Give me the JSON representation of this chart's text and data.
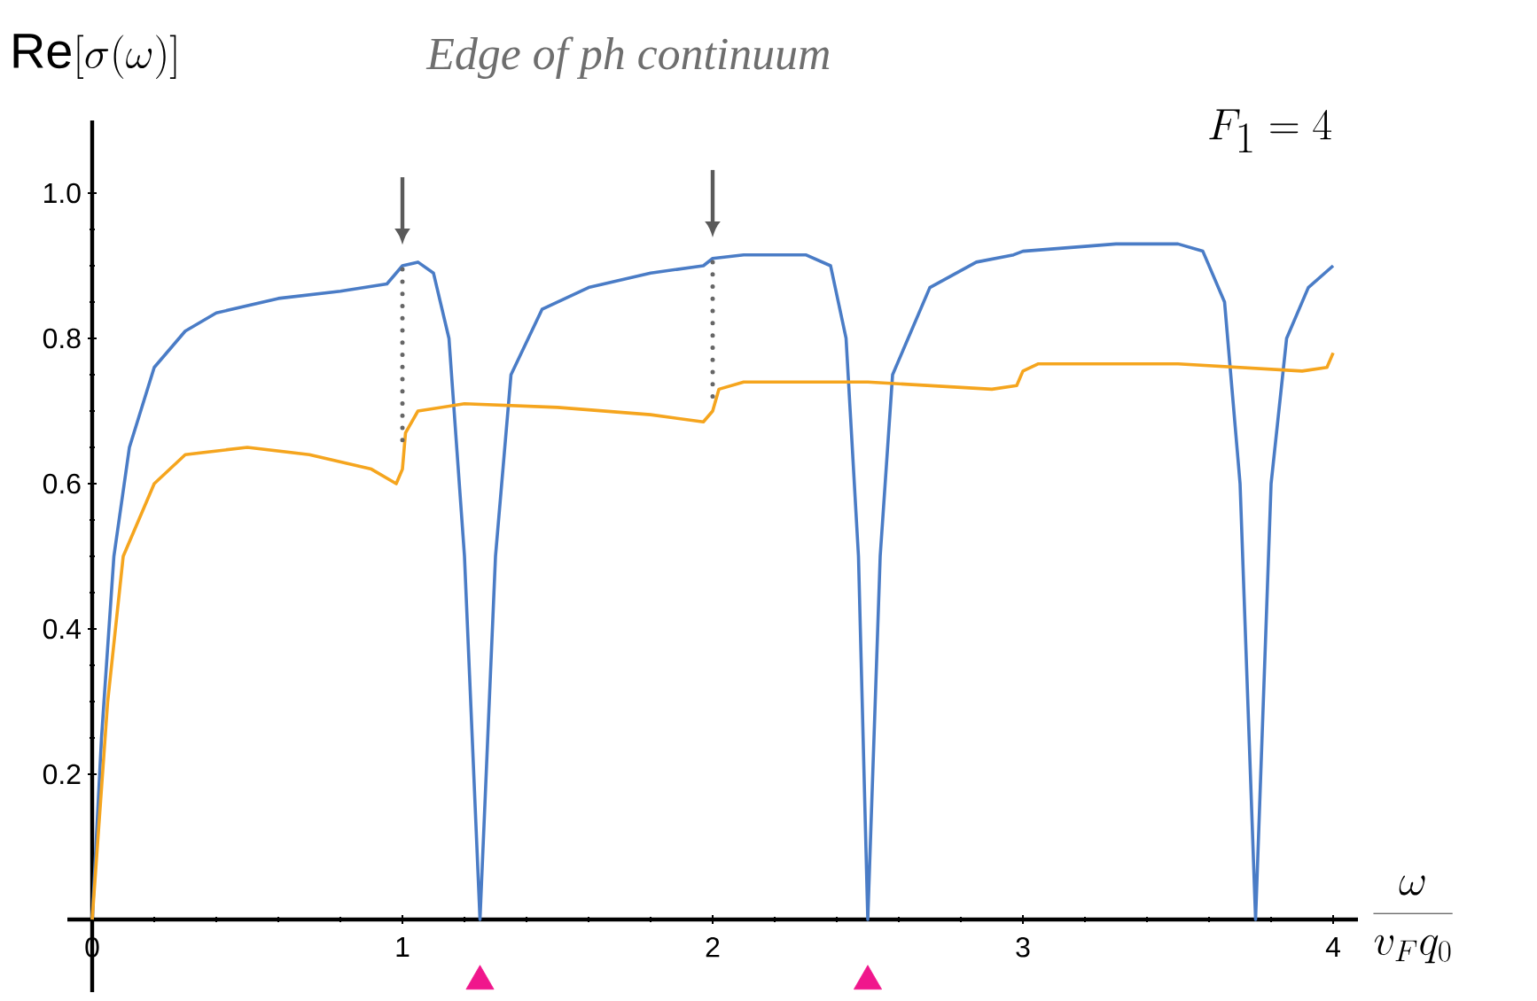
{
  "chart_data": {
    "type": "line",
    "title": "*Edge of ph continuum*",
    "xlabel": "\\frac{\\omega}{v_F q_0}",
    "ylabel": "\\mathrm{Re}[\\sigma(\\omega)]",
    "annotations": [
      "F_1 = 4"
    ],
    "xlim": [
      -0.08,
      4.08
    ],
    "ylim": [
      -0.1,
      1.1
    ],
    "xticks": [
      0,
      1,
      2,
      3,
      4
    ],
    "yticks": [
      0.2,
      0.4,
      0.6,
      0.8,
      {
        "value": 1.0,
        "label": "1.0"
      }
    ],
    "series": [
      {
        "color": "#4a7cc6",
        "x": [
          0,
          0.03,
          0.07,
          0.12,
          0.2,
          0.3,
          0.4,
          0.6,
          0.8,
          0.95,
          1.0,
          1.05,
          1.1,
          1.15,
          1.2,
          1.25,
          1.3,
          1.35,
          1.45,
          1.6,
          1.8,
          1.97,
          2.0,
          2.1,
          2.3,
          2.38,
          2.43,
          2.47,
          2.5,
          2.54,
          2.58,
          2.7,
          2.85,
          2.97,
          3.0,
          3.3,
          3.5,
          3.58,
          3.65,
          3.7,
          3.75,
          3.8,
          3.85,
          3.92,
          4.0
        ],
        "values": [
          0,
          0.25,
          0.5,
          0.65,
          0.76,
          0.81,
          0.835,
          0.855,
          0.865,
          0.875,
          0.9,
          0.905,
          0.89,
          0.8,
          0.5,
          0,
          0.5,
          0.75,
          0.84,
          0.87,
          0.89,
          0.9,
          0.91,
          0.915,
          0.915,
          0.9,
          0.8,
          0.5,
          0,
          0.5,
          0.75,
          0.87,
          0.905,
          0.915,
          0.92,
          0.93,
          0.93,
          0.92,
          0.85,
          0.6,
          0,
          0.6,
          0.8,
          0.87,
          0.9
        ]
      },
      {
        "color": "#f5a51e",
        "x": [
          0,
          0.05,
          0.1,
          0.2,
          0.3,
          0.5,
          0.7,
          0.9,
          0.98,
          1.0,
          1.01,
          1.05,
          1.2,
          1.5,
          1.8,
          1.97,
          2.0,
          2.02,
          2.1,
          2.5,
          2.9,
          2.98,
          3.0,
          3.05,
          3.5,
          3.9,
          3.98,
          4.0
        ],
        "values": [
          0,
          0.3,
          0.5,
          0.6,
          0.64,
          0.65,
          0.64,
          0.62,
          0.6,
          0.62,
          0.67,
          0.7,
          0.71,
          0.705,
          0.695,
          0.685,
          0.7,
          0.73,
          0.74,
          0.74,
          0.73,
          0.735,
          0.755,
          0.765,
          0.765,
          0.755,
          0.76,
          0.78
        ]
      },
      {
        "color": "#666666",
        "line_style": "dotted",
        "x": [
          1,
          1
        ],
        "values": [
          0.66,
          0.895
        ]
      },
      {
        "color": "#666666",
        "line_style": "dotted",
        "x": [
          2,
          2
        ],
        "values": [
          0.72,
          0.905
        ]
      },
      {
        "type": "scatter",
        "color": "#f0168c",
        "marker": "triangle",
        "x": [
          1.25,
          2.5
        ],
        "values": [
          -0.085,
          -0.085
        ]
      }
    ]
  }
}
